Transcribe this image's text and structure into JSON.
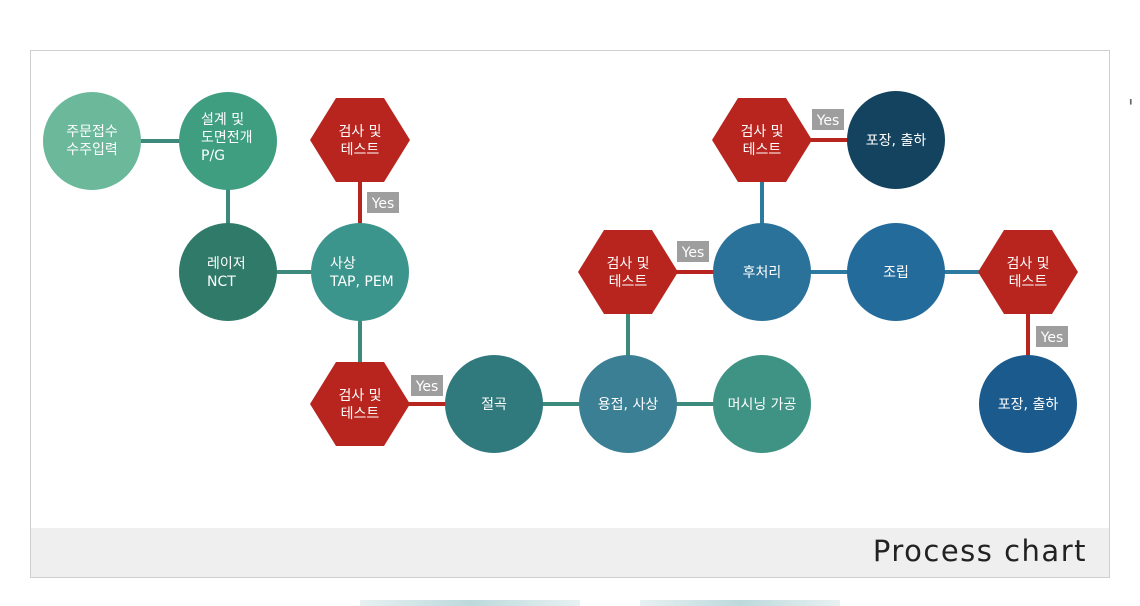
{
  "chart_title": "Process chart",
  "colors": {
    "hexagon": "#b8251f",
    "connector_red": "#b8251f",
    "yes_box": "#9e9e9e",
    "connector_teal": "#3c8a7c",
    "connector_blue": "#2d7aa0",
    "order": "#6bb99a",
    "design": "#3f9d80",
    "laser": "#2f7a68",
    "shear": "#3c958c",
    "bend": "#307a7e",
    "weld": "#3a7f94",
    "machining": "#3e9384",
    "post": "#2a7299",
    "assembly": "#236b9b",
    "pack_top": "#13435f",
    "pack_right": "#1b5a8d"
  },
  "nodes": {
    "order": {
      "line1": "주문접수",
      "line2": "수주입력"
    },
    "design": {
      "line1": "설계 및",
      "line2": "도면전개",
      "line3": "P/G"
    },
    "laser": {
      "line1": "레이저",
      "line2": "NCT"
    },
    "shear": {
      "line1": "사상",
      "line2": "TAP, PEM"
    },
    "bend": {
      "line1": "절곡"
    },
    "weld": {
      "line1": "용접, 사상"
    },
    "machining": {
      "line1": "머시닝 가공"
    },
    "post": {
      "line1": "후처리"
    },
    "assembly": {
      "line1": "조립"
    },
    "pack_top": {
      "line1": "포장, 출하"
    },
    "pack_right": {
      "line1": "포장, 출하"
    }
  },
  "inspection": {
    "line1": "검사 및",
    "line2": "테스트"
  },
  "yes_label": "Yes",
  "side_mark": "'"
}
